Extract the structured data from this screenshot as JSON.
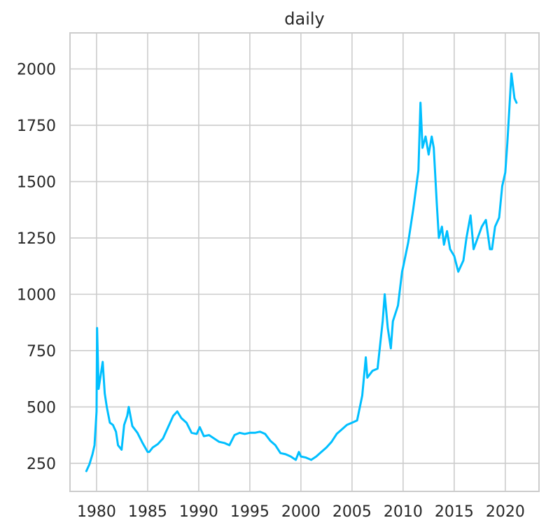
{
  "chart_data": {
    "type": "line",
    "title": "daily",
    "xlabel": "",
    "ylabel": "",
    "xlim": [
      1977.4,
      2023.3
    ],
    "ylim": [
      125,
      2160
    ],
    "x_ticks": [
      1980,
      1985,
      1990,
      1995,
      2000,
      2005,
      2010,
      2015,
      2020
    ],
    "x_tick_labels": [
      "1980",
      "1985",
      "1990",
      "1995",
      "2000",
      "2005",
      "2010",
      "2015",
      "2020"
    ],
    "y_ticks": [
      250,
      500,
      750,
      1000,
      1250,
      1500,
      1750,
      2000
    ],
    "y_tick_labels": [
      "250",
      "500",
      "750",
      "1000",
      "1250",
      "1500",
      "1750",
      "2000"
    ],
    "grid": true,
    "line_color": "#00bfff",
    "series": [
      {
        "name": "",
        "x": [
          1979.0,
          1979.3,
          1979.6,
          1979.8,
          1980.0,
          1980.05,
          1980.2,
          1980.4,
          1980.6,
          1980.8,
          1981.0,
          1981.3,
          1981.6,
          1981.9,
          1982.1,
          1982.45,
          1982.7,
          1983.0,
          1983.15,
          1983.5,
          1984.0,
          1984.5,
          1985.0,
          1985.15,
          1985.5,
          1986.0,
          1986.5,
          1987.0,
          1987.5,
          1987.9,
          1988.3,
          1988.8,
          1989.3,
          1989.8,
          1990.1,
          1990.5,
          1991.0,
          1991.5,
          1992.0,
          1992.5,
          1993.0,
          1993.5,
          1994.0,
          1994.5,
          1995.0,
          1995.5,
          1996.0,
          1996.5,
          1997.0,
          1997.5,
          1998.0,
          1998.5,
          1999.0,
          1999.5,
          1999.8,
          2000.0,
          2000.5,
          2001.0,
          2001.5,
          2002.0,
          2002.5,
          2003.0,
          2003.5,
          2004.0,
          2004.5,
          2005.0,
          2005.5,
          2006.0,
          2006.35,
          2006.5,
          2007.0,
          2007.5,
          2008.0,
          2008.2,
          2008.5,
          2008.8,
          2009.0,
          2009.5,
          2009.9,
          2010.0,
          2010.5,
          2011.0,
          2011.5,
          2011.7,
          2011.9,
          2012.2,
          2012.5,
          2012.8,
          2013.0,
          2013.3,
          2013.5,
          2013.8,
          2014.0,
          2014.3,
          2014.6,
          2015.0,
          2015.4,
          2015.9,
          2016.2,
          2016.6,
          2016.9,
          2017.3,
          2017.7,
          2018.1,
          2018.5,
          2018.7,
          2019.0,
          2019.4,
          2019.7,
          2020.0,
          2020.2,
          2020.6,
          2020.9,
          2021.1
        ],
        "y": [
          215,
          245,
          290,
          330,
          480,
          850,
          580,
          640,
          700,
          560,
          500,
          430,
          420,
          390,
          330,
          310,
          420,
          460,
          500,
          415,
          385,
          340,
          300,
          300,
          320,
          335,
          360,
          410,
          460,
          480,
          450,
          430,
          385,
          380,
          410,
          370,
          375,
          360,
          345,
          340,
          330,
          375,
          385,
          380,
          385,
          385,
          390,
          380,
          350,
          330,
          295,
          290,
          280,
          265,
          300,
          280,
          275,
          265,
          280,
          300,
          320,
          345,
          380,
          400,
          420,
          430,
          440,
          550,
          720,
          630,
          660,
          670,
          880,
          1000,
          850,
          760,
          880,
          950,
          1100,
          1120,
          1230,
          1380,
          1550,
          1850,
          1650,
          1700,
          1620,
          1700,
          1650,
          1400,
          1250,
          1300,
          1220,
          1280,
          1200,
          1170,
          1100,
          1150,
          1250,
          1350,
          1200,
          1250,
          1300,
          1330,
          1200,
          1200,
          1300,
          1340,
          1480,
          1540,
          1670,
          1980,
          1870,
          1850
        ]
      }
    ]
  }
}
